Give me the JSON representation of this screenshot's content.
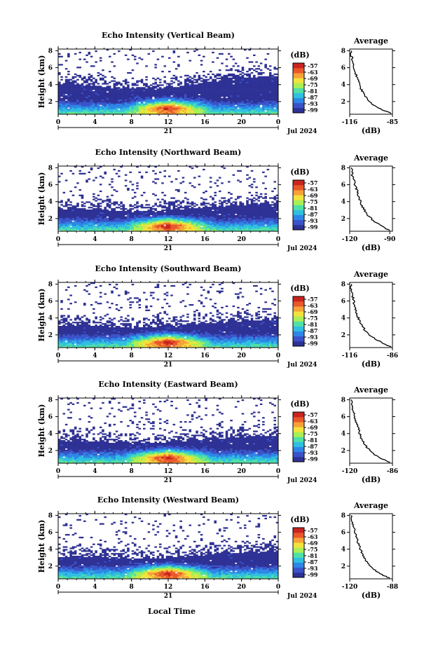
{
  "figure": {
    "xlabel": "Local Time",
    "x_ticks": [
      "0",
      "4",
      "8",
      "12",
      "16",
      "20",
      "0"
    ],
    "day_label": "21",
    "date_label": "Jul 2024",
    "ylabel": "Height (km)",
    "y_ticks": [
      "2",
      "4",
      "6",
      "8"
    ],
    "avg_title": "Average",
    "avg_xlabel": "(dB)",
    "colorbar_unit": "(dB)",
    "colorbar_ticks": [
      "-57",
      "-63",
      "-69",
      "-75",
      "-81",
      "-87",
      "-93",
      "-99"
    ],
    "colorbar_colors": [
      "#2e3195",
      "#3b53c9",
      "#2e86e6",
      "#2fbfe0",
      "#4fe0a6",
      "#a9ef55",
      "#f2e33c",
      "#f6a238",
      "#e9582a",
      "#c9241f"
    ],
    "background_color": "#2e3192"
  },
  "chart_data": [
    {
      "type": "heatmap",
      "title": "Echo Intensity (Vertical Beam)",
      "x_range_hours": [
        0,
        24
      ],
      "y_range_km": [
        0.5,
        8.2
      ],
      "echo_top_km_at_hours": {
        "0": 4.3,
        "4": 4.0,
        "8": 3.6,
        "12": 3.8,
        "16": 4.4,
        "20": 5.0,
        "24": 5.2
      },
      "peak_intensity_time_hours": 12,
      "peak_intensity_height_km": 1.3,
      "avg_profile": {
        "x_ticks": [
          "-116",
          "-85"
        ],
        "xlim": [
          -116,
          -85
        ],
        "ylim": [
          0.5,
          8.2
        ],
        "heights_km": [
          0.6,
          1.0,
          1.5,
          2.0,
          2.5,
          3.0,
          3.5,
          4.0,
          4.5,
          5.0,
          5.5,
          6.0,
          6.5,
          7.0,
          7.5,
          8.0
        ],
        "values_db": [
          -86,
          -92,
          -98,
          -102,
          -104,
          -106,
          -108,
          -109,
          -110,
          -111,
          -112,
          -113,
          -114,
          -114,
          -115,
          -115
        ]
      }
    },
    {
      "type": "heatmap",
      "title": "Echo Intensity (Northward Beam)",
      "x_range_hours": [
        0,
        24
      ],
      "y_range_km": [
        0.5,
        8.2
      ],
      "echo_top_km_at_hours": {
        "0": 3.3,
        "4": 3.3,
        "8": 3.0,
        "12": 3.2,
        "16": 3.5,
        "20": 3.8,
        "24": 4.0
      },
      "peak_intensity_time_hours": 12,
      "peak_intensity_height_km": 1.2,
      "avg_profile": {
        "x_ticks": [
          "-120",
          "-90"
        ],
        "xlim": [
          -120,
          -88
        ],
        "ylim": [
          0.5,
          8.2
        ],
        "heights_km": [
          0.6,
          1.0,
          1.5,
          2.0,
          2.5,
          3.0,
          3.5,
          4.0,
          4.5,
          5.0,
          5.5,
          6.0,
          6.5,
          7.0,
          7.5,
          8.0
        ],
        "values_db": [
          -90,
          -95,
          -100,
          -104,
          -107,
          -109,
          -111,
          -112,
          -113,
          -114,
          -115,
          -116,
          -117,
          -118,
          -118,
          -119
        ]
      }
    },
    {
      "type": "heatmap",
      "title": "Echo Intensity (Southward Beam)",
      "x_range_hours": [
        0,
        24
      ],
      "y_range_km": [
        0.5,
        8.2
      ],
      "echo_top_km_at_hours": {
        "0": 3.3,
        "4": 3.3,
        "8": 3.0,
        "12": 3.2,
        "16": 3.5,
        "20": 3.8,
        "24": 4.0
      },
      "peak_intensity_time_hours": 12,
      "peak_intensity_height_km": 1.2,
      "avg_profile": {
        "x_ticks": [
          "-116",
          "-86"
        ],
        "xlim": [
          -116,
          -86
        ],
        "ylim": [
          0.5,
          8.2
        ],
        "heights_km": [
          0.6,
          1.0,
          1.5,
          2.0,
          2.5,
          3.0,
          3.5,
          4.0,
          4.5,
          5.0,
          5.5,
          6.0,
          6.5,
          7.0,
          7.5,
          8.0
        ],
        "values_db": [
          -87,
          -93,
          -98,
          -102,
          -105,
          -107,
          -109,
          -110,
          -111,
          -112,
          -113,
          -113,
          -114,
          -114,
          -115,
          -115
        ]
      }
    },
    {
      "type": "heatmap",
      "title": "Echo Intensity (Eastward Beam)",
      "x_range_hours": [
        0,
        24
      ],
      "y_range_km": [
        0.5,
        8.2
      ],
      "echo_top_km_at_hours": {
        "0": 3.3,
        "4": 3.3,
        "8": 3.0,
        "12": 3.2,
        "16": 3.5,
        "20": 3.8,
        "24": 4.0
      },
      "peak_intensity_time_hours": 12,
      "peak_intensity_height_km": 1.2,
      "avg_profile": {
        "x_ticks": [
          "-120",
          "-86"
        ],
        "xlim": [
          -120,
          -86
        ],
        "ylim": [
          0.5,
          8.2
        ],
        "heights_km": [
          0.6,
          1.0,
          1.5,
          2.0,
          2.5,
          3.0,
          3.5,
          4.0,
          4.5,
          5.0,
          5.5,
          6.0,
          6.5,
          7.0,
          7.5,
          8.0
        ],
        "values_db": [
          -88,
          -94,
          -100,
          -104,
          -107,
          -109,
          -111,
          -112,
          -113,
          -114,
          -115,
          -116,
          -117,
          -118,
          -118,
          -119
        ]
      }
    },
    {
      "type": "heatmap",
      "title": "Echo Intensity (Westward Beam)",
      "x_range_hours": [
        0,
        24
      ],
      "y_range_km": [
        0.5,
        8.2
      ],
      "echo_top_km_at_hours": {
        "0": 3.3,
        "4": 3.3,
        "8": 3.0,
        "12": 3.2,
        "16": 3.5,
        "20": 3.8,
        "24": 4.0
      },
      "peak_intensity_time_hours": 12,
      "peak_intensity_height_km": 1.2,
      "avg_profile": {
        "x_ticks": [
          "-120",
          "-88"
        ],
        "xlim": [
          -120,
          -88
        ],
        "ylim": [
          0.5,
          8.2
        ],
        "heights_km": [
          0.6,
          1.0,
          1.5,
          2.0,
          2.5,
          3.0,
          3.5,
          4.0,
          4.5,
          5.0,
          5.5,
          6.0,
          6.5,
          7.0,
          7.5,
          8.0
        ],
        "values_db": [
          -90,
          -96,
          -101,
          -105,
          -107,
          -109,
          -111,
          -112,
          -113,
          -114,
          -115,
          -116,
          -117,
          -118,
          -118,
          -119
        ]
      }
    }
  ]
}
